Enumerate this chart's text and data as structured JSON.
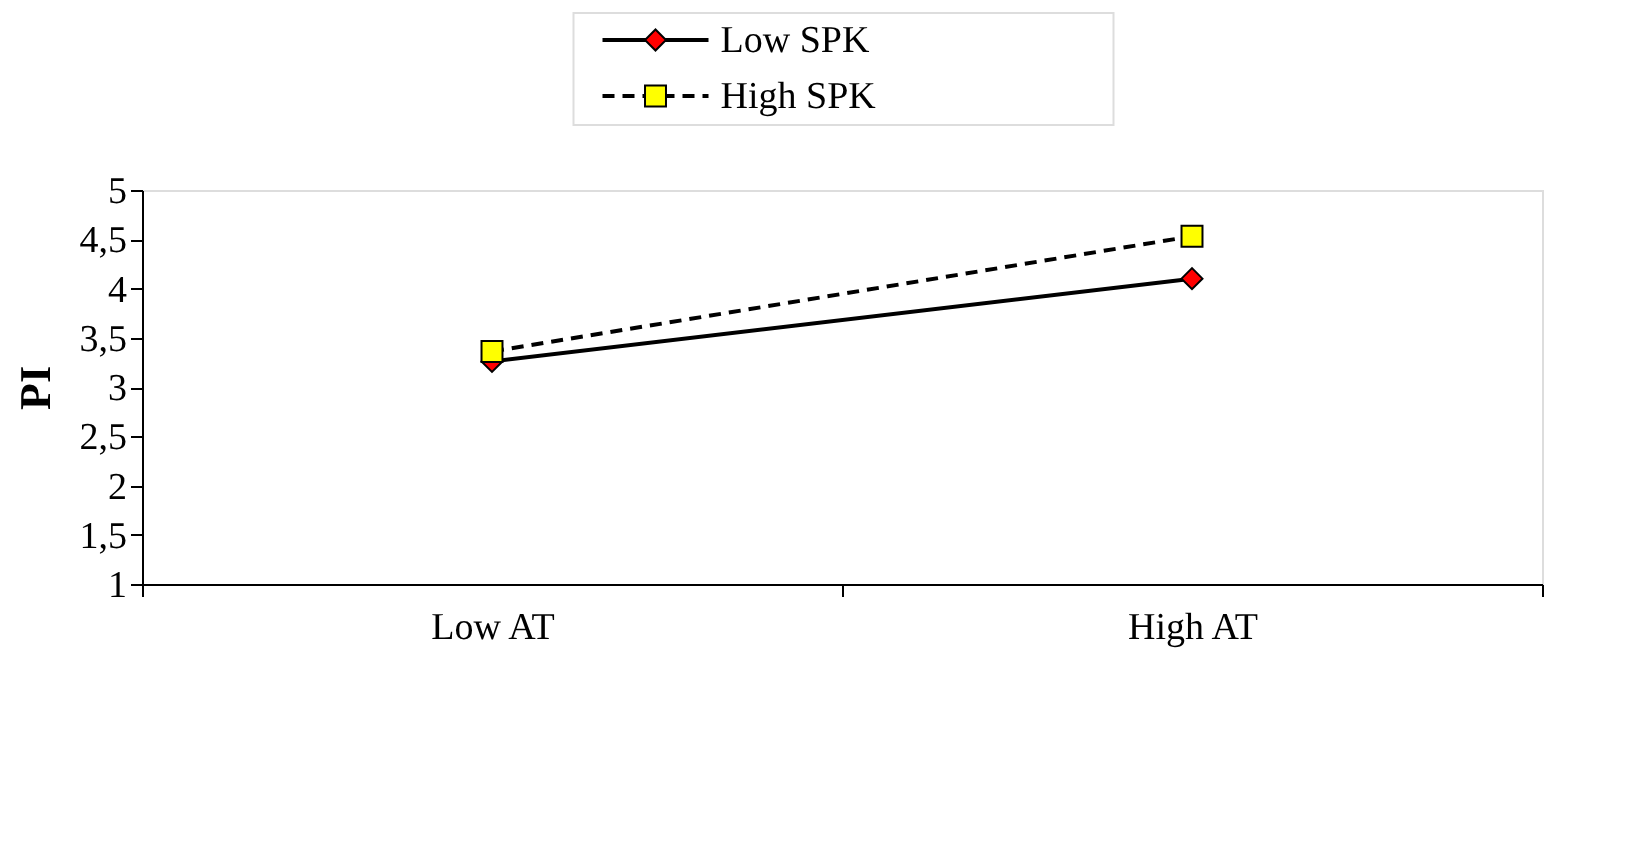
{
  "chart_data": {
    "type": "line",
    "categories": [
      "Low AT",
      "High AT"
    ],
    "ylabel": "PI",
    "ylim": [
      1,
      5
    ],
    "yticks": [
      1,
      {
        "value": 1.5,
        "label": "1,5"
      },
      2,
      {
        "value": 2.5,
        "label": "2,5"
      },
      3,
      {
        "value": 3.5,
        "label": "3,5"
      },
      4,
      {
        "value": 4.5,
        "label": "4,5"
      },
      5
    ],
    "grid": false,
    "legend": "top",
    "series": [
      {
        "name": "Low SPK",
        "color": "#ff0000",
        "marker": "diamond",
        "line_style": "solid",
        "values": [
          3.26,
          4.1
        ]
      },
      {
        "name": "High SPK",
        "color": "#ffff00",
        "marker": "square",
        "line_style": "dashed",
        "values": [
          3.36,
          4.53
        ]
      }
    ]
  }
}
